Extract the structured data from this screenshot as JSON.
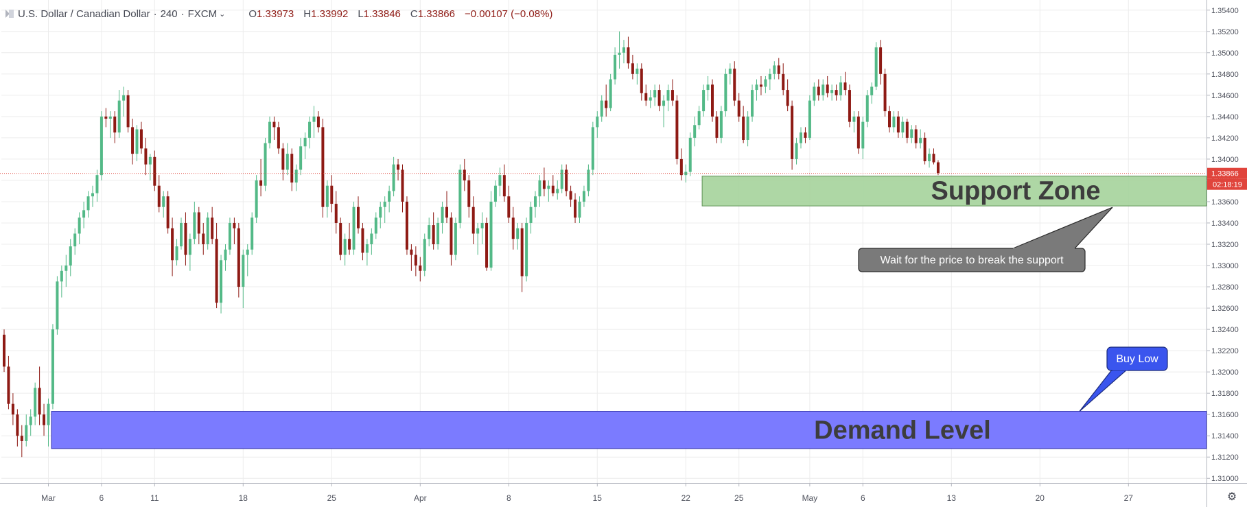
{
  "header": {
    "symbol": "U.S. Dollar / Canadian Dollar",
    "sep": "·",
    "interval": "240",
    "exchange": "FXCM",
    "open_label": "O",
    "open": "1.33973",
    "high_label": "H",
    "high": "1.33992",
    "low_label": "L",
    "low": "1.33846",
    "close_label": "C",
    "close": "1.33866",
    "change": "−0.00107 (−0.08%)"
  },
  "price_axis": {
    "ticks": [
      "1.35400",
      "1.35200",
      "1.35000",
      "1.34800",
      "1.34600",
      "1.34400",
      "1.34200",
      "1.34000",
      "1.33800",
      "1.33600",
      "1.33400",
      "1.33200",
      "1.33000",
      "1.32800",
      "1.32600",
      "1.32400",
      "1.32200",
      "1.32000",
      "1.31800",
      "1.31600",
      "1.31400",
      "1.31200",
      "1.31000"
    ],
    "last_price_label": "1.33866",
    "countdown_label": "02:18:19"
  },
  "time_axis": {
    "labels": [
      "Mar",
      "6",
      "11",
      "18",
      "25",
      "Apr",
      "8",
      "15",
      "22",
      "25",
      "May",
      "6",
      "13",
      "20",
      "27"
    ]
  },
  "annotations": {
    "support_zone_label": "Support Zone",
    "support_note": "Wait for the price to break the support",
    "demand_label": "Demand Level",
    "buy_label": "Buy Low"
  },
  "colors": {
    "up": "#53b987",
    "down": "#8e1a14",
    "support_fill": "#a5d39b",
    "demand_fill": "#7b7bff",
    "last_price": "#e0443c",
    "grid": "#ececec"
  },
  "chart_data": {
    "type": "candlestick",
    "title": "U.S. Dollar / Canadian Dollar · 240 · FXCM",
    "y_range": [
      1.3095,
      1.3545
    ],
    "grid": true,
    "x_ticks": [
      {
        "label": "Mar",
        "bar": 10
      },
      {
        "label": "6",
        "bar": 22
      },
      {
        "label": "11",
        "bar": 34
      },
      {
        "label": "18",
        "bar": 54
      },
      {
        "label": "25",
        "bar": 74
      },
      {
        "label": "Apr",
        "bar": 94
      },
      {
        "label": "8",
        "bar": 114
      },
      {
        "label": "15",
        "bar": 134
      },
      {
        "label": "22",
        "bar": 154
      },
      {
        "label": "25",
        "bar": 166
      },
      {
        "label": "May",
        "bar": 182
      },
      {
        "label": "6",
        "bar": 194
      },
      {
        "label": "13",
        "bar": 214
      },
      {
        "label": "20",
        "bar": 234
      },
      {
        "label": "27",
        "bar": 254
      }
    ],
    "bars": [
      [
        1.3235,
        1.324,
        1.32,
        1.3205
      ],
      [
        1.3205,
        1.3215,
        1.3165,
        1.317
      ],
      [
        1.317,
        1.318,
        1.315,
        1.316
      ],
      [
        1.316,
        1.3165,
        1.313,
        1.314
      ],
      [
        1.314,
        1.315,
        1.312,
        1.3135
      ],
      [
        1.3135,
        1.316,
        1.313,
        1.315
      ],
      [
        1.315,
        1.3165,
        1.314,
        1.3158
      ],
      [
        1.3158,
        1.319,
        1.315,
        1.3185
      ],
      [
        1.3185,
        1.3205,
        1.315,
        1.316
      ],
      [
        1.316,
        1.317,
        1.314,
        1.315
      ],
      [
        1.315,
        1.3175,
        1.313,
        1.317
      ],
      [
        1.317,
        1.3245,
        1.3165,
        1.324
      ],
      [
        1.324,
        1.329,
        1.3235,
        1.3285
      ],
      [
        1.3285,
        1.33,
        1.327,
        1.3295
      ],
      [
        1.3295,
        1.331,
        1.328,
        1.33
      ],
      [
        1.33,
        1.3325,
        1.329,
        1.3318
      ],
      [
        1.3318,
        1.3335,
        1.331,
        1.333
      ],
      [
        1.333,
        1.335,
        1.332,
        1.3345
      ],
      [
        1.3345,
        1.336,
        1.3335,
        1.3352
      ],
      [
        1.3352,
        1.337,
        1.3345,
        1.3365
      ],
      [
        1.3365,
        1.3375,
        1.3355,
        1.3368
      ],
      [
        1.3368,
        1.339,
        1.336,
        1.3385
      ],
      [
        1.3385,
        1.3445,
        1.338,
        1.344
      ],
      [
        1.344,
        1.3448,
        1.343,
        1.3438
      ],
      [
        1.3438,
        1.3445,
        1.342,
        1.344
      ],
      [
        1.344,
        1.3445,
        1.3415,
        1.3425
      ],
      [
        1.3425,
        1.3465,
        1.342,
        1.3455
      ],
      [
        1.3455,
        1.3468,
        1.344,
        1.346
      ],
      [
        1.346,
        1.3465,
        1.3425,
        1.343
      ],
      [
        1.343,
        1.3438,
        1.3395,
        1.3405
      ],
      [
        1.3405,
        1.3432,
        1.3398,
        1.3428
      ],
      [
        1.3428,
        1.3435,
        1.3405,
        1.341
      ],
      [
        1.341,
        1.342,
        1.3385,
        1.3395
      ],
      [
        1.3395,
        1.3405,
        1.338,
        1.3402
      ],
      [
        1.3402,
        1.3408,
        1.337,
        1.3375
      ],
      [
        1.3375,
        1.3385,
        1.335,
        1.3355
      ],
      [
        1.3355,
        1.337,
        1.3345,
        1.3365
      ],
      [
        1.3365,
        1.337,
        1.333,
        1.3335
      ],
      [
        1.3335,
        1.3345,
        1.329,
        1.3305
      ],
      [
        1.3305,
        1.3325,
        1.33,
        1.3318
      ],
      [
        1.3318,
        1.3345,
        1.3315,
        1.334
      ],
      [
        1.334,
        1.335,
        1.33,
        1.331
      ],
      [
        1.331,
        1.333,
        1.3295,
        1.3325
      ],
      [
        1.3325,
        1.336,
        1.332,
        1.335
      ],
      [
        1.335,
        1.3355,
        1.332,
        1.333
      ],
      [
        1.333,
        1.334,
        1.331,
        1.332
      ],
      [
        1.332,
        1.335,
        1.3315,
        1.3345
      ],
      [
        1.3345,
        1.3355,
        1.332,
        1.3325
      ],
      [
        1.3325,
        1.334,
        1.326,
        1.3265
      ],
      [
        1.3265,
        1.331,
        1.3255,
        1.3305
      ],
      [
        1.3305,
        1.332,
        1.3295,
        1.3315
      ],
      [
        1.3315,
        1.3345,
        1.331,
        1.334
      ],
      [
        1.334,
        1.3345,
        1.332,
        1.3335
      ],
      [
        1.3335,
        1.334,
        1.327,
        1.328
      ],
      [
        1.328,
        1.3315,
        1.326,
        1.331
      ],
      [
        1.331,
        1.332,
        1.329,
        1.3315
      ],
      [
        1.3315,
        1.335,
        1.331,
        1.3345
      ],
      [
        1.3345,
        1.3385,
        1.334,
        1.338
      ],
      [
        1.338,
        1.34,
        1.3365,
        1.3375
      ],
      [
        1.3375,
        1.342,
        1.337,
        1.3415
      ],
      [
        1.3415,
        1.344,
        1.341,
        1.3435
      ],
      [
        1.3435,
        1.344,
        1.3418,
        1.343
      ],
      [
        1.343,
        1.3435,
        1.3405,
        1.341
      ],
      [
        1.341,
        1.3415,
        1.338,
        1.339
      ],
      [
        1.339,
        1.3415,
        1.3385,
        1.3405
      ],
      [
        1.3405,
        1.341,
        1.337,
        1.3378
      ],
      [
        1.3378,
        1.3395,
        1.337,
        1.339
      ],
      [
        1.339,
        1.342,
        1.3385,
        1.3412
      ],
      [
        1.3412,
        1.3425,
        1.34,
        1.342
      ],
      [
        1.342,
        1.344,
        1.341,
        1.3435
      ],
      [
        1.3435,
        1.345,
        1.342,
        1.344
      ],
      [
        1.344,
        1.3445,
        1.3425,
        1.343
      ],
      [
        1.343,
        1.3438,
        1.3345,
        1.3355
      ],
      [
        1.3355,
        1.338,
        1.3345,
        1.3375
      ],
      [
        1.3375,
        1.3385,
        1.335,
        1.3358
      ],
      [
        1.3358,
        1.337,
        1.333,
        1.334
      ],
      [
        1.334,
        1.3345,
        1.3305,
        1.331
      ],
      [
        1.331,
        1.333,
        1.33,
        1.3325
      ],
      [
        1.3325,
        1.334,
        1.331,
        1.3315
      ],
      [
        1.3315,
        1.336,
        1.331,
        1.3355
      ],
      [
        1.3355,
        1.3365,
        1.333,
        1.3335
      ],
      [
        1.3335,
        1.334,
        1.3305,
        1.3312
      ],
      [
        1.3312,
        1.3325,
        1.33,
        1.332
      ],
      [
        1.332,
        1.3335,
        1.331,
        1.333
      ],
      [
        1.333,
        1.335,
        1.3325,
        1.3345
      ],
      [
        1.3345,
        1.336,
        1.3335,
        1.3355
      ],
      [
        1.3355,
        1.3365,
        1.334,
        1.336
      ],
      [
        1.336,
        1.3375,
        1.335,
        1.337
      ],
      [
        1.337,
        1.3402,
        1.3365,
        1.3395
      ],
      [
        1.3395,
        1.34,
        1.338,
        1.339
      ],
      [
        1.339,
        1.3395,
        1.335,
        1.336
      ],
      [
        1.336,
        1.3365,
        1.331,
        1.3315
      ],
      [
        1.3315,
        1.332,
        1.3295,
        1.331
      ],
      [
        1.331,
        1.3318,
        1.329,
        1.33
      ],
      [
        1.33,
        1.3308,
        1.3285,
        1.3295
      ],
      [
        1.3295,
        1.333,
        1.329,
        1.3325
      ],
      [
        1.3325,
        1.3345,
        1.3318,
        1.3338
      ],
      [
        1.3338,
        1.335,
        1.3315,
        1.332
      ],
      [
        1.332,
        1.3345,
        1.3315,
        1.334
      ],
      [
        1.334,
        1.336,
        1.333,
        1.3355
      ],
      [
        1.3355,
        1.337,
        1.334,
        1.3345
      ],
      [
        1.3345,
        1.335,
        1.33,
        1.331
      ],
      [
        1.331,
        1.3345,
        1.3305,
        1.334
      ],
      [
        1.334,
        1.3395,
        1.3335,
        1.339
      ],
      [
        1.339,
        1.34,
        1.337,
        1.338
      ],
      [
        1.338,
        1.3385,
        1.3345,
        1.3355
      ],
      [
        1.3355,
        1.3365,
        1.332,
        1.333
      ],
      [
        1.333,
        1.334,
        1.331,
        1.3335
      ],
      [
        1.3335,
        1.335,
        1.332,
        1.334
      ],
      [
        1.334,
        1.3345,
        1.3295,
        1.3298
      ],
      [
        1.3298,
        1.337,
        1.3295,
        1.336
      ],
      [
        1.336,
        1.338,
        1.3355,
        1.3375
      ],
      [
        1.3375,
        1.3392,
        1.3365,
        1.3385
      ],
      [
        1.3385,
        1.3395,
        1.336,
        1.3365
      ],
      [
        1.3365,
        1.3375,
        1.334,
        1.3345
      ],
      [
        1.3345,
        1.3355,
        1.3315,
        1.3325
      ],
      [
        1.3325,
        1.334,
        1.3315,
        1.3335
      ],
      [
        1.3335,
        1.334,
        1.3275,
        1.329
      ],
      [
        1.329,
        1.3345,
        1.3285,
        1.334
      ],
      [
        1.334,
        1.336,
        1.333,
        1.3355
      ],
      [
        1.3355,
        1.337,
        1.3345,
        1.3365
      ],
      [
        1.3365,
        1.3385,
        1.3355,
        1.338
      ],
      [
        1.338,
        1.3392,
        1.3365,
        1.3372
      ],
      [
        1.3372,
        1.338,
        1.336,
        1.3375
      ],
      [
        1.3375,
        1.3385,
        1.3365,
        1.3368
      ],
      [
        1.3368,
        1.338,
        1.3362,
        1.3372
      ],
      [
        1.3372,
        1.3395,
        1.3368,
        1.339
      ],
      [
        1.339,
        1.3395,
        1.3365,
        1.337
      ],
      [
        1.337,
        1.3375,
        1.3355,
        1.3362
      ],
      [
        1.3362,
        1.3368,
        1.334,
        1.3345
      ],
      [
        1.3345,
        1.3365,
        1.334,
        1.336
      ],
      [
        1.336,
        1.3375,
        1.3355,
        1.337
      ],
      [
        1.337,
        1.3395,
        1.3365,
        1.339
      ],
      [
        1.339,
        1.3435,
        1.3385,
        1.343
      ],
      [
        1.343,
        1.3445,
        1.342,
        1.344
      ],
      [
        1.344,
        1.346,
        1.3435,
        1.3455
      ],
      [
        1.3455,
        1.347,
        1.344,
        1.3448
      ],
      [
        1.3448,
        1.348,
        1.3445,
        1.3475
      ],
      [
        1.3475,
        1.3505,
        1.347,
        1.3498
      ],
      [
        1.3498,
        1.352,
        1.3485,
        1.35
      ],
      [
        1.35,
        1.3512,
        1.349,
        1.3505
      ],
      [
        1.3505,
        1.3515,
        1.3485,
        1.349
      ],
      [
        1.349,
        1.3498,
        1.3475,
        1.348
      ],
      [
        1.348,
        1.349,
        1.347,
        1.3485
      ],
      [
        1.3485,
        1.349,
        1.3455,
        1.3462
      ],
      [
        1.3462,
        1.347,
        1.345,
        1.3455
      ],
      [
        1.3455,
        1.3465,
        1.3448,
        1.3458
      ],
      [
        1.3458,
        1.347,
        1.345,
        1.3465
      ],
      [
        1.3465,
        1.347,
        1.3445,
        1.345
      ],
      [
        1.345,
        1.346,
        1.343,
        1.3455
      ],
      [
        1.3455,
        1.347,
        1.3445,
        1.3465
      ],
      [
        1.3465,
        1.3475,
        1.345,
        1.3455
      ],
      [
        1.3455,
        1.346,
        1.3395,
        1.34
      ],
      [
        1.34,
        1.341,
        1.338,
        1.3385
      ],
      [
        1.3385,
        1.3395,
        1.3378,
        1.3388
      ],
      [
        1.3388,
        1.3425,
        1.3384,
        1.342
      ],
      [
        1.342,
        1.344,
        1.3412,
        1.3432
      ],
      [
        1.3432,
        1.345,
        1.3428,
        1.3445
      ],
      [
        1.3445,
        1.347,
        1.344,
        1.3465
      ],
      [
        1.3465,
        1.3478,
        1.3455,
        1.347
      ],
      [
        1.347,
        1.3475,
        1.3435,
        1.344
      ],
      [
        1.344,
        1.3445,
        1.3415,
        1.342
      ],
      [
        1.342,
        1.345,
        1.3415,
        1.3445
      ],
      [
        1.3445,
        1.3485,
        1.344,
        1.348
      ],
      [
        1.348,
        1.349,
        1.347,
        1.3485
      ],
      [
        1.3485,
        1.3492,
        1.345,
        1.3455
      ],
      [
        1.3455,
        1.3462,
        1.3435,
        1.344
      ],
      [
        1.344,
        1.345,
        1.3415,
        1.3418
      ],
      [
        1.3418,
        1.3445,
        1.3412,
        1.344
      ],
      [
        1.344,
        1.347,
        1.3435,
        1.3465
      ],
      [
        1.3465,
        1.3475,
        1.3455,
        1.347
      ],
      [
        1.347,
        1.3478,
        1.346,
        1.3468
      ],
      [
        1.3468,
        1.3478,
        1.3462,
        1.3475
      ],
      [
        1.3475,
        1.3485,
        1.3465,
        1.348
      ],
      [
        1.348,
        1.3492,
        1.3475,
        1.3488
      ],
      [
        1.3488,
        1.3495,
        1.3475,
        1.348
      ],
      [
        1.348,
        1.349,
        1.346,
        1.3465
      ],
      [
        1.3465,
        1.3475,
        1.3445,
        1.345
      ],
      [
        1.345,
        1.3455,
        1.339,
        1.34
      ],
      [
        1.34,
        1.342,
        1.3395,
        1.3415
      ],
      [
        1.3415,
        1.343,
        1.341,
        1.3425
      ],
      [
        1.3425,
        1.343,
        1.3415,
        1.342
      ],
      [
        1.342,
        1.346,
        1.3418,
        1.3455
      ],
      [
        1.3455,
        1.3472,
        1.345,
        1.3468
      ],
      [
        1.3468,
        1.3475,
        1.3455,
        1.346
      ],
      [
        1.346,
        1.3475,
        1.3455,
        1.347
      ],
      [
        1.347,
        1.3478,
        1.3458,
        1.3462
      ],
      [
        1.3462,
        1.347,
        1.3455,
        1.3465
      ],
      [
        1.3465,
        1.347,
        1.3455,
        1.346
      ],
      [
        1.346,
        1.3478,
        1.3455,
        1.3472
      ],
      [
        1.3472,
        1.3482,
        1.346,
        1.3465
      ],
      [
        1.3465,
        1.347,
        1.343,
        1.3435
      ],
      [
        1.3435,
        1.3445,
        1.3425,
        1.344
      ],
      [
        1.344,
        1.3445,
        1.3405,
        1.341
      ],
      [
        1.341,
        1.344,
        1.34,
        1.3435
      ],
      [
        1.3435,
        1.3465,
        1.343,
        1.346
      ],
      [
        1.346,
        1.3472,
        1.3452,
        1.3468
      ],
      [
        1.3468,
        1.351,
        1.3465,
        1.3505
      ],
      [
        1.3505,
        1.3512,
        1.347,
        1.348
      ],
      [
        1.348,
        1.3485,
        1.344,
        1.3445
      ],
      [
        1.3445,
        1.345,
        1.3425,
        1.343
      ],
      [
        1.343,
        1.3445,
        1.3425,
        1.344
      ],
      [
        1.344,
        1.3445,
        1.342,
        1.3425
      ],
      [
        1.3425,
        1.344,
        1.342,
        1.3435
      ],
      [
        1.3435,
        1.3438,
        1.3415,
        1.342
      ],
      [
        1.342,
        1.3432,
        1.3415,
        1.3428
      ],
      [
        1.3428,
        1.3432,
        1.341,
        1.3415
      ],
      [
        1.3415,
        1.3428,
        1.341,
        1.342
      ],
      [
        1.342,
        1.3425,
        1.3395,
        1.3398
      ],
      [
        1.3398,
        1.341,
        1.3392,
        1.3405
      ],
      [
        1.3405,
        1.341,
        1.3395,
        1.3397
      ],
      [
        1.3397,
        1.3399,
        1.3385,
        1.3387
      ]
    ],
    "support_zone": {
      "low": 1.3356,
      "high": 1.3384,
      "start_bar": 158
    },
    "demand_level": {
      "low": 1.3128,
      "high": 1.3163,
      "start_bar": 11
    },
    "last_price": 1.33866
  }
}
